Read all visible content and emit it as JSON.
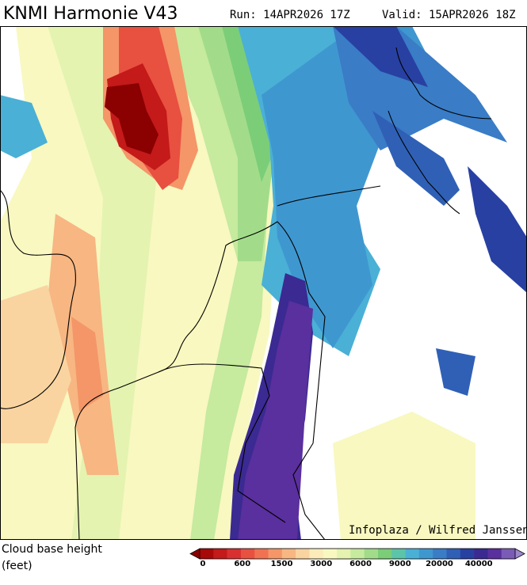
{
  "header": {
    "title": "KNMI Harmonie V43",
    "run": "Run: 14APR2026 17Z",
    "valid": "Valid: 15APR2026 18Z"
  },
  "map": {
    "credit": "Infoplaza / Wilfred Janssen"
  },
  "legend": {
    "title": "Cloud base height",
    "unit": "(feet)",
    "colors": [
      "#8b0000",
      "#a80808",
      "#c41a1a",
      "#d83030",
      "#e85040",
      "#f07252",
      "#f49668",
      "#f7b682",
      "#f9d4a0",
      "#fbecba",
      "#f8f8c0",
      "#e4f3b0",
      "#c6ea9e",
      "#a2dc8a",
      "#7ccd78",
      "#5cc4a8",
      "#4ab0d6",
      "#3f97d0",
      "#3a7cc6",
      "#2f60b6",
      "#2840a2",
      "#3a2a92",
      "#5a2f9e",
      "#7a5cb6",
      "#9c88cc"
    ],
    "labels": [
      "0",
      "600",
      "1500",
      "3000",
      "6000",
      "9000",
      "20000",
      "40000"
    ]
  }
}
